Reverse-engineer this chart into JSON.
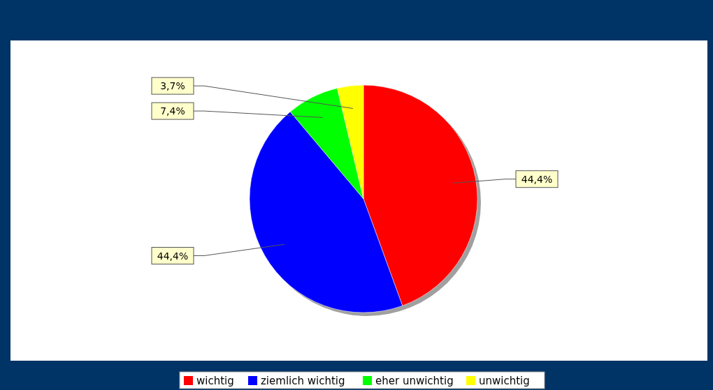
{
  "chart_data": {
    "type": "pie",
    "categories": [
      "wichtig",
      "ziemlich wichtig",
      "eher unwichtig",
      "unwichtig"
    ],
    "values": [
      44.4,
      44.4,
      7.4,
      3.7
    ],
    "colors": [
      "#ff0000",
      "#0000ff",
      "#00ff00",
      "#ffff00"
    ],
    "value_labels": [
      "44,4%",
      "44,4%",
      "7,4%",
      "3,7%"
    ],
    "legend": "bottom"
  }
}
